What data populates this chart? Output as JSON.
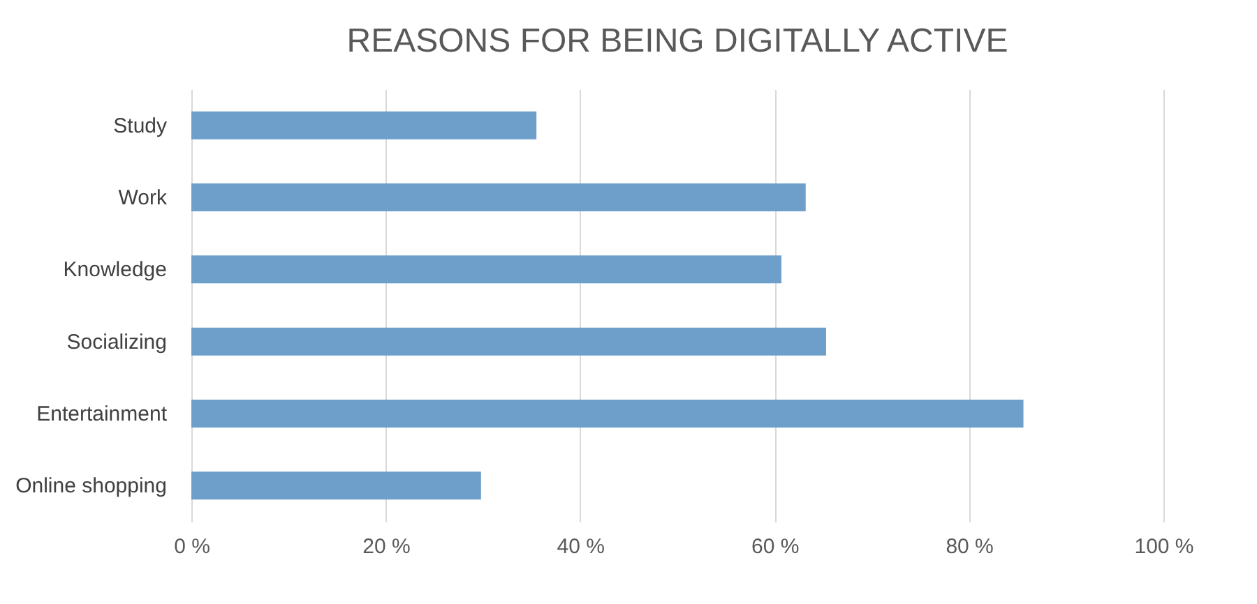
{
  "chart_data": {
    "type": "bar",
    "orientation": "horizontal",
    "title": "REASONS FOR BEING DIGITALLY ACTIVE",
    "categories": [
      "Study",
      "Work",
      "Knowledge",
      "Socializing",
      "Entertainment",
      "Online shopping"
    ],
    "values": [
      35.5,
      63.2,
      60.7,
      65.3,
      85.6,
      29.8
    ],
    "color": "#6e9fcb",
    "xlim": [
      0,
      100
    ],
    "xticks": [
      {
        "value": 0,
        "label": "0 %"
      },
      {
        "value": 20,
        "label": "20 %"
      },
      {
        "value": 40,
        "label": "40 %"
      },
      {
        "value": 60,
        "label": "60 %"
      },
      {
        "value": 80,
        "label": "80 %"
      },
      {
        "value": 100,
        "label": "100 %"
      }
    ],
    "grid": "x"
  }
}
